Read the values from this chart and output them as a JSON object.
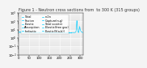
{
  "title": "Figure 1 - Neutron cross sections from  to 300 K (315 groups)",
  "background_color": "#f4f4f4",
  "plot_bg_color": "#e8e8e8",
  "grid_color": "#ffffff",
  "line_color": "#00ccff",
  "xlim": [
    0,
    315
  ],
  "ymin": 0.01,
  "ymax": 1000.0,
  "title_fontsize": 3.5,
  "legend_fontsize": 2.5,
  "tick_fontsize": 2.8,
  "legend_labels": [
    "Total",
    "Fission",
    "Elastic",
    "Absorption",
    "Inelastic",
    "n,2n"
  ],
  "legend_labels2": [
    "Capture(n,g)",
    "Total scatter",
    "Elastic(free gas)",
    "Elastic(S(a,b))"
  ]
}
